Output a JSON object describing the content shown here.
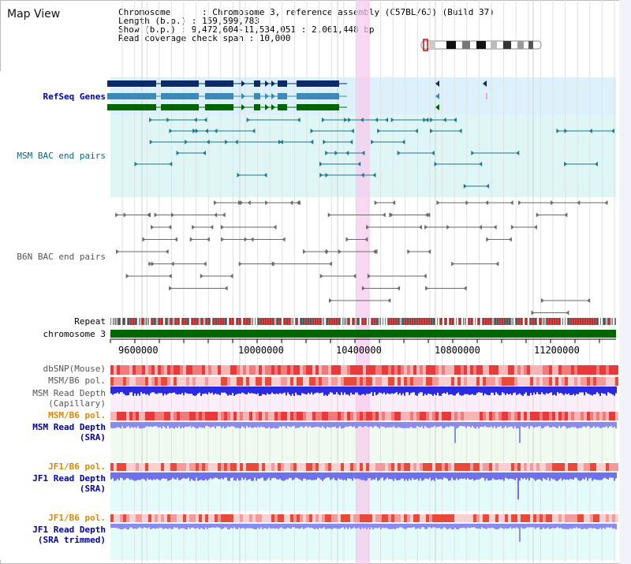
{
  "title": "Map View",
  "info": {
    "chromosome_label": "Chromosome      : ",
    "chromosome_value": "Chromosome 3, reference assembly (C57BL/6J) (Build 37)",
    "length_label": "Length (b.p.) : ",
    "length_value": "159,599,783",
    "show_label": "Show (b.p.) : ",
    "show_value": "9,472,604-11,534,051 : 2,061,448 bp",
    "span_label": "Read coverage check span : ",
    "span_value": "10,000"
  },
  "tracks": {
    "refseq": "RefSeq Genes",
    "msm_bac": "MSM BAC end pairs",
    "b6n_bac": "B6N BAC end pairs",
    "repeat": "Repeat",
    "chromosome": "chromosome 3",
    "dbsnp": "dbSNP(Mouse)",
    "msm_b6_pol_1": "MSM/B6 pol.",
    "msm_read_depth_cap_1": "MSM Read Depth",
    "msm_read_depth_cap_2": "(Capillary)",
    "msm_b6_pol_2": "MSM/B6 pol.",
    "msm_read_depth_sra_1": "MSM Read Depth",
    "msm_read_depth_sra_2": "(SRA)",
    "jf1_b6_pol_1": "JF1/B6 pol.",
    "jf1_read_depth_sra_1": "JF1 Read Depth",
    "jf1_read_depth_sra_2": "(SRA)",
    "jf1_b6_pol_2": "JF1/B6 pol.",
    "jf1_read_depth_trim_1": "JF1 Read Depth",
    "jf1_read_depth_trim_2": "(SRA trimmed)"
  },
  "axis_ticks": [
    "9600000",
    "10000000",
    "10400000",
    "10800000",
    "11200000"
  ],
  "colors": {
    "refseq_bg": "#dcf1fb",
    "msm_bg": "#dff6f6",
    "highlight": "#f6c9ec",
    "chromosome_bar": "#006600",
    "navy_label": "#0000aa",
    "teal_label": "#006688",
    "orange_label": "#e08800",
    "gray_label": "#555555"
  }
}
